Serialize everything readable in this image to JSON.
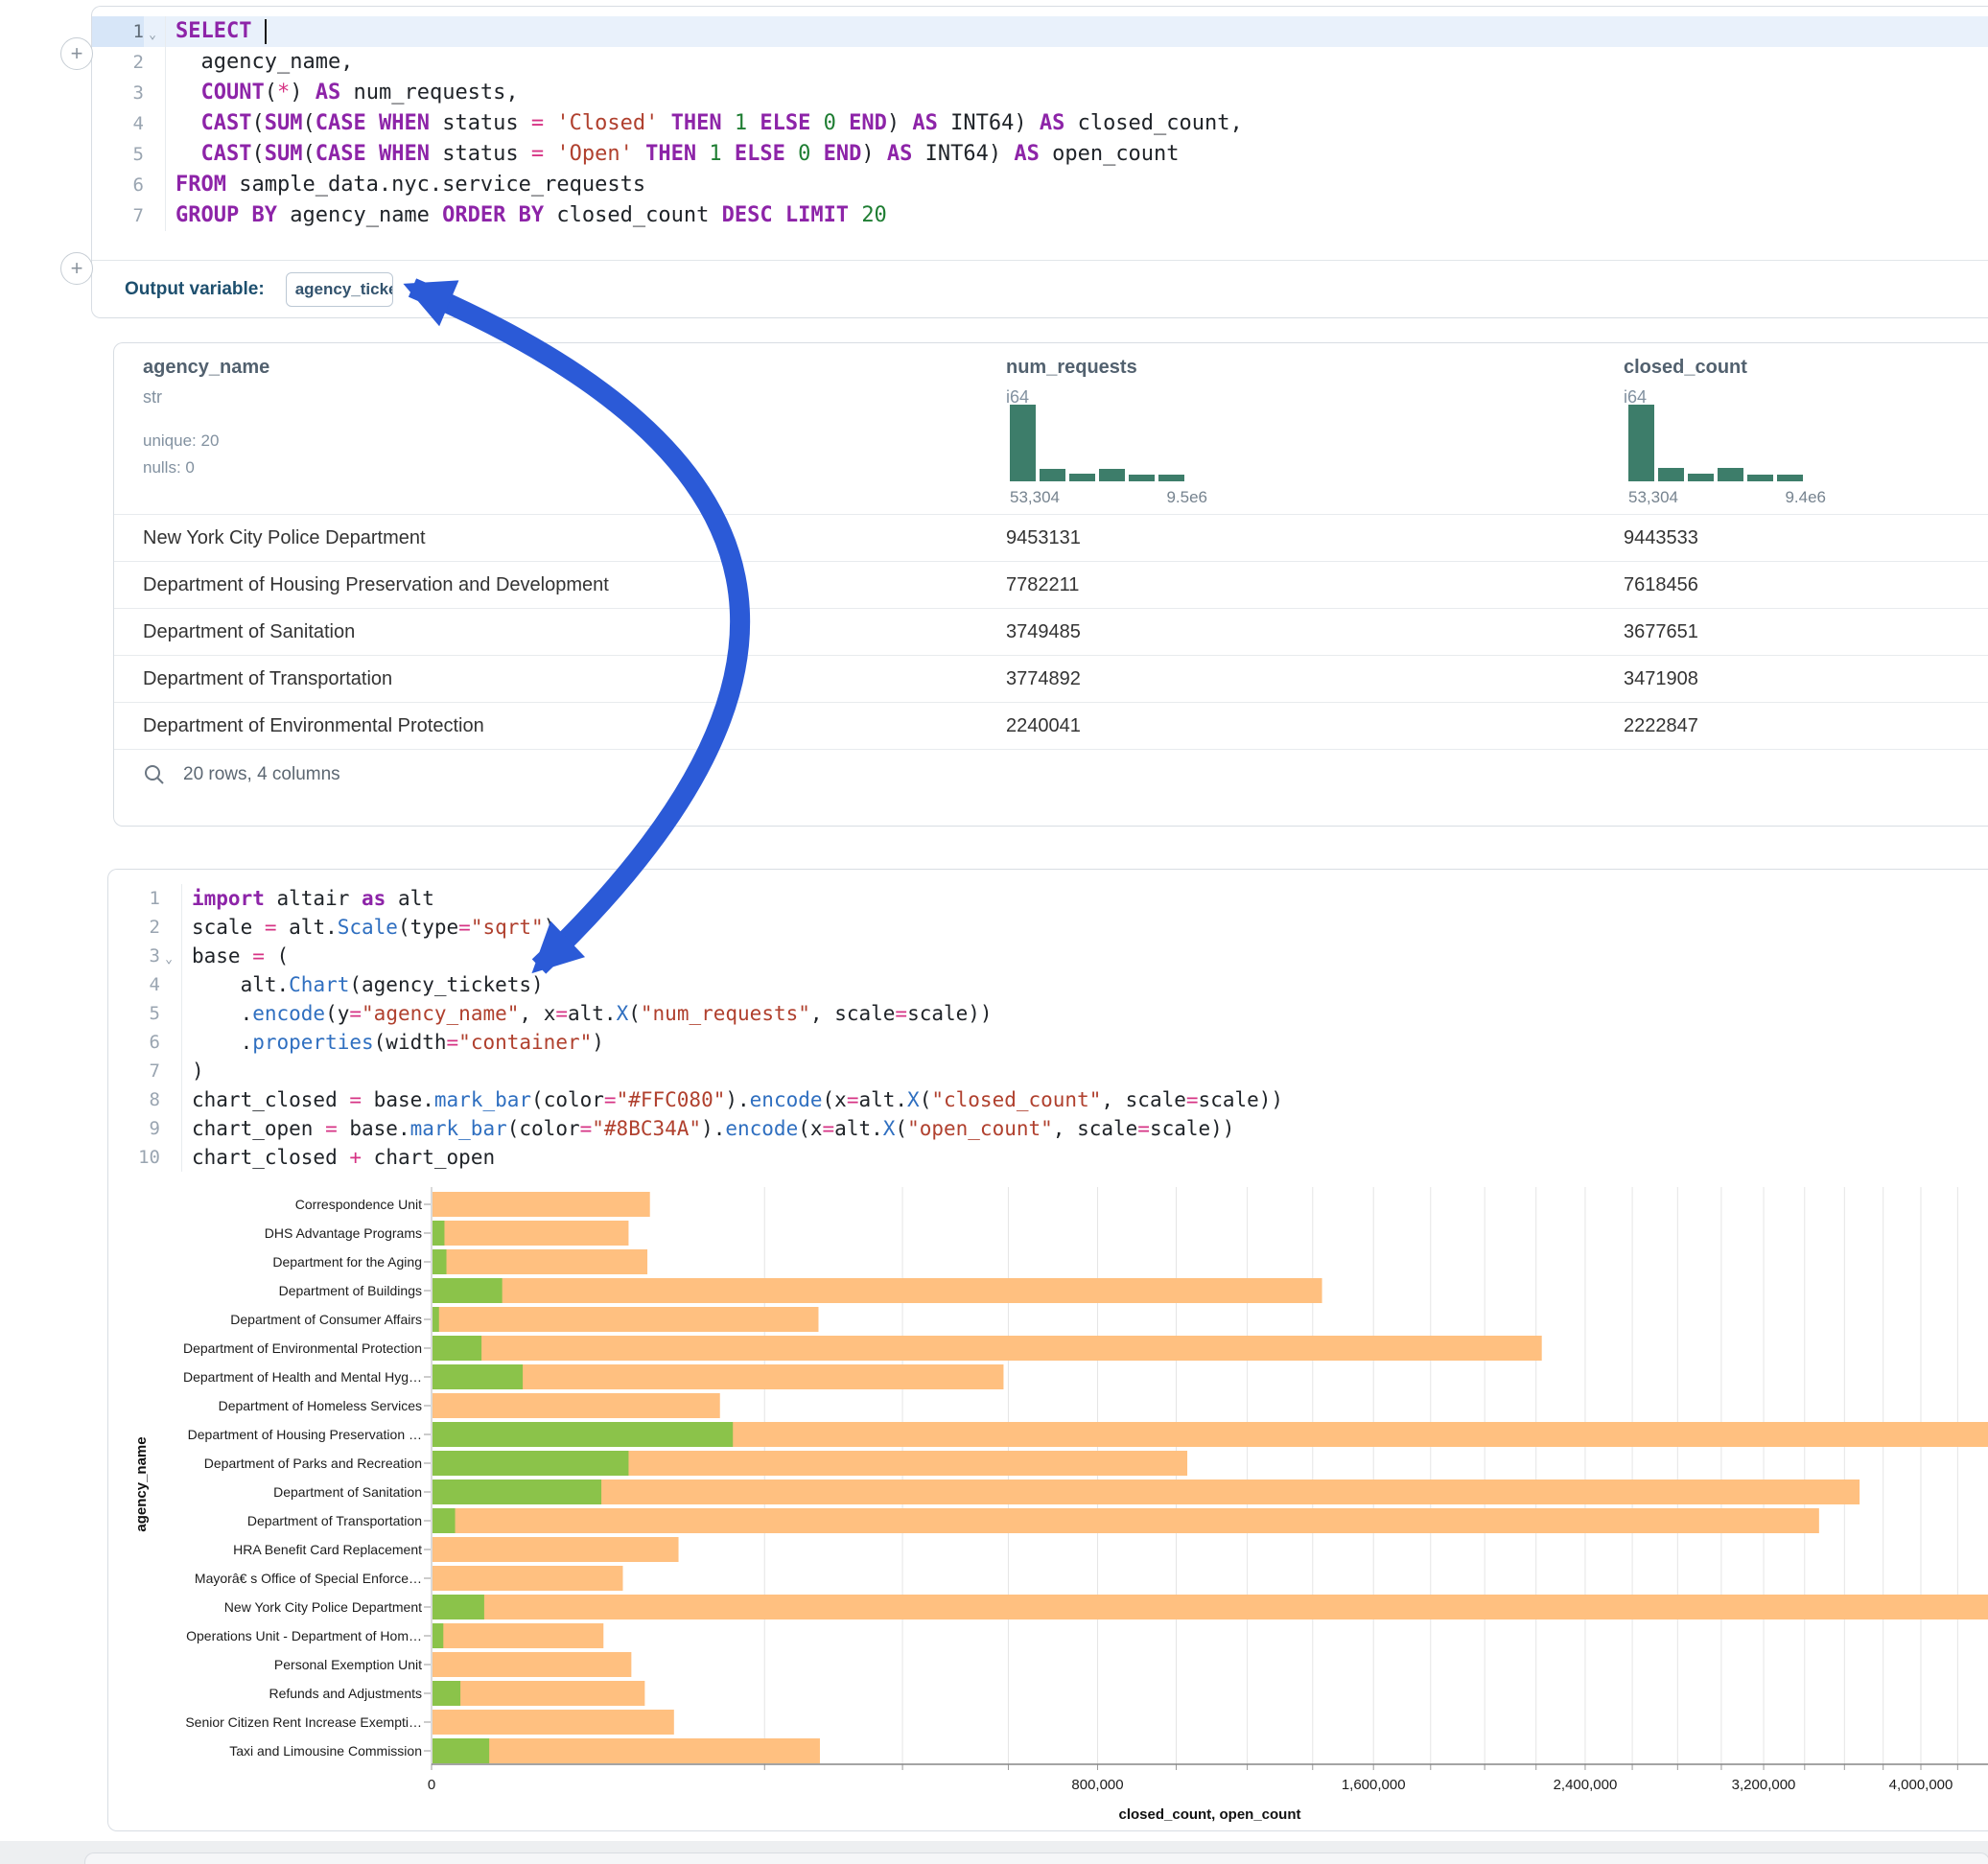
{
  "ui": {
    "add_button_label": "+",
    "fold_glyph": "⌄"
  },
  "sql_cell": {
    "lines": [
      {
        "n": "1",
        "fold": true,
        "active": true,
        "tokens": [
          [
            "k",
            "SELECT"
          ],
          [
            "t",
            " "
          ],
          [
            "caret",
            ""
          ]
        ]
      },
      {
        "n": "2",
        "tokens": [
          [
            "t",
            "  agency_name,"
          ]
        ]
      },
      {
        "n": "3",
        "tokens": [
          [
            "t",
            "  "
          ],
          [
            "k",
            "COUNT"
          ],
          [
            "t",
            "("
          ],
          [
            "o",
            "*"
          ],
          [
            "t",
            ") "
          ],
          [
            "k",
            "AS"
          ],
          [
            "t",
            " num_requests,"
          ]
        ]
      },
      {
        "n": "4",
        "tokens": [
          [
            "t",
            "  "
          ],
          [
            "k",
            "CAST"
          ],
          [
            "t",
            "("
          ],
          [
            "k",
            "SUM"
          ],
          [
            "t",
            "("
          ],
          [
            "k",
            "CASE"
          ],
          [
            "t",
            " "
          ],
          [
            "k",
            "WHEN"
          ],
          [
            "t",
            " status "
          ],
          [
            "o",
            "="
          ],
          [
            "t",
            " "
          ],
          [
            "s",
            "'Closed'"
          ],
          [
            "t",
            " "
          ],
          [
            "k",
            "THEN"
          ],
          [
            "t",
            " "
          ],
          [
            "n2",
            "1"
          ],
          [
            "t",
            " "
          ],
          [
            "k",
            "ELSE"
          ],
          [
            "t",
            " "
          ],
          [
            "n2",
            "0"
          ],
          [
            "t",
            " "
          ],
          [
            "k",
            "END"
          ],
          [
            "t",
            ") "
          ],
          [
            "k",
            "AS"
          ],
          [
            "t",
            " INT64) "
          ],
          [
            "k",
            "AS"
          ],
          [
            "t",
            " closed_count,"
          ]
        ]
      },
      {
        "n": "5",
        "tokens": [
          [
            "t",
            "  "
          ],
          [
            "k",
            "CAST"
          ],
          [
            "t",
            "("
          ],
          [
            "k",
            "SUM"
          ],
          [
            "t",
            "("
          ],
          [
            "k",
            "CASE"
          ],
          [
            "t",
            " "
          ],
          [
            "k",
            "WHEN"
          ],
          [
            "t",
            " status "
          ],
          [
            "o",
            "="
          ],
          [
            "t",
            " "
          ],
          [
            "s",
            "'Open'"
          ],
          [
            "t",
            " "
          ],
          [
            "k",
            "THEN"
          ],
          [
            "t",
            " "
          ],
          [
            "n2",
            "1"
          ],
          [
            "t",
            " "
          ],
          [
            "k",
            "ELSE"
          ],
          [
            "t",
            " "
          ],
          [
            "n2",
            "0"
          ],
          [
            "t",
            " "
          ],
          [
            "k",
            "END"
          ],
          [
            "t",
            ") "
          ],
          [
            "k",
            "AS"
          ],
          [
            "t",
            " INT64) "
          ],
          [
            "k",
            "AS"
          ],
          [
            "t",
            " open_count"
          ]
        ]
      },
      {
        "n": "6",
        "tokens": [
          [
            "k",
            "FROM"
          ],
          [
            "t",
            " sample_data.nyc.service_requests"
          ]
        ]
      },
      {
        "n": "7",
        "tokens": [
          [
            "k",
            "GROUP"
          ],
          [
            "t",
            " "
          ],
          [
            "k",
            "BY"
          ],
          [
            "t",
            " agency_name "
          ],
          [
            "k",
            "ORDER"
          ],
          [
            "t",
            " "
          ],
          [
            "k",
            "BY"
          ],
          [
            "t",
            " closed_count "
          ],
          [
            "k",
            "DESC"
          ],
          [
            "t",
            " "
          ],
          [
            "k",
            "LIMIT"
          ],
          [
            "t",
            " "
          ],
          [
            "n2",
            "20"
          ]
        ]
      }
    ]
  },
  "output_row": {
    "label": "Output variable:",
    "value": "agency_tickets"
  },
  "table": {
    "columns": [
      {
        "name": "agency_name",
        "type": "str",
        "unique": "unique: 20",
        "nulls": "nulls: 0"
      },
      {
        "name": "num_requests",
        "type": "i64",
        "hist": [
          1,
          0.16,
          0.1,
          0.16,
          0.085,
          0.085
        ],
        "min_label": "53,304",
        "max_label": "9.5e6"
      },
      {
        "name": "closed_count",
        "type": "i64",
        "hist": [
          1,
          0.17,
          0.1,
          0.17,
          0.09,
          0.09
        ],
        "min_label": "53,304",
        "max_label": "9.4e6"
      }
    ],
    "rows": [
      {
        "agency": "New York City Police Department",
        "num": "9453131",
        "closed": "9443533"
      },
      {
        "agency": "Department of Housing Preservation and Development",
        "num": "7782211",
        "closed": "7618456"
      },
      {
        "agency": "Department of Sanitation",
        "num": "3749485",
        "closed": "3677651"
      },
      {
        "agency": "Department of Transportation",
        "num": "3774892",
        "closed": "3471908"
      },
      {
        "agency": "Department of Environmental Protection",
        "num": "2240041",
        "closed": "2222847"
      }
    ],
    "footer": "20 rows, 4 columns",
    "hist_color": "#3d7d6a"
  },
  "python_cell": {
    "lines": [
      {
        "n": "1",
        "tokens": [
          [
            "k",
            "import"
          ],
          [
            "t",
            " altair "
          ],
          [
            "k",
            "as"
          ],
          [
            "t",
            " alt"
          ]
        ]
      },
      {
        "n": "2",
        "tokens": [
          [
            "t",
            "scale "
          ],
          [
            "o",
            "="
          ],
          [
            "t",
            " alt."
          ],
          [
            "f",
            "Scale"
          ],
          [
            "t",
            "(type"
          ],
          [
            "o",
            "="
          ],
          [
            "s",
            "\"sqrt\""
          ],
          [
            "t",
            ")"
          ]
        ]
      },
      {
        "n": "3",
        "fold": true,
        "tokens": [
          [
            "t",
            "base "
          ],
          [
            "o",
            "="
          ],
          [
            "t",
            " ("
          ]
        ]
      },
      {
        "n": "4",
        "tokens": [
          [
            "t",
            "    alt."
          ],
          [
            "f",
            "Chart"
          ],
          [
            "t",
            "(agency_tickets)"
          ]
        ]
      },
      {
        "n": "5",
        "tokens": [
          [
            "t",
            "    ."
          ],
          [
            "f",
            "encode"
          ],
          [
            "t",
            "(y"
          ],
          [
            "o",
            "="
          ],
          [
            "s",
            "\"agency_name\""
          ],
          [
            "t",
            ", x"
          ],
          [
            "o",
            "="
          ],
          [
            "t",
            "alt."
          ],
          [
            "f",
            "X"
          ],
          [
            "t",
            "("
          ],
          [
            "s",
            "\"num_requests\""
          ],
          [
            "t",
            ", scale"
          ],
          [
            "o",
            "="
          ],
          [
            "t",
            "scale))"
          ]
        ]
      },
      {
        "n": "6",
        "tokens": [
          [
            "t",
            "    ."
          ],
          [
            "f",
            "properties"
          ],
          [
            "t",
            "(width"
          ],
          [
            "o",
            "="
          ],
          [
            "s",
            "\"container\""
          ],
          [
            "t",
            ")"
          ]
        ]
      },
      {
        "n": "7",
        "tokens": [
          [
            "t",
            ")"
          ]
        ]
      },
      {
        "n": "8",
        "tokens": [
          [
            "t",
            "chart_closed "
          ],
          [
            "o",
            "="
          ],
          [
            "t",
            " base."
          ],
          [
            "f",
            "mark_bar"
          ],
          [
            "t",
            "(color"
          ],
          [
            "o",
            "="
          ],
          [
            "s",
            "\"#FFC080\""
          ],
          [
            "t",
            ")."
          ],
          [
            "f",
            "encode"
          ],
          [
            "t",
            "(x"
          ],
          [
            "o",
            "="
          ],
          [
            "t",
            "alt."
          ],
          [
            "f",
            "X"
          ],
          [
            "t",
            "("
          ],
          [
            "s",
            "\"closed_count\""
          ],
          [
            "t",
            ", scale"
          ],
          [
            "o",
            "="
          ],
          [
            "t",
            "scale))"
          ]
        ]
      },
      {
        "n": "9",
        "tokens": [
          [
            "t",
            "chart_open "
          ],
          [
            "o",
            "="
          ],
          [
            "t",
            " base."
          ],
          [
            "f",
            "mark_bar"
          ],
          [
            "t",
            "(color"
          ],
          [
            "o",
            "="
          ],
          [
            "s",
            "\"#8BC34A\""
          ],
          [
            "t",
            ")."
          ],
          [
            "f",
            "encode"
          ],
          [
            "t",
            "(x"
          ],
          [
            "o",
            "="
          ],
          [
            "t",
            "alt."
          ],
          [
            "f",
            "X"
          ],
          [
            "t",
            "("
          ],
          [
            "s",
            "\"open_count\""
          ],
          [
            "t",
            ", scale"
          ],
          [
            "o",
            "="
          ],
          [
            "t",
            "scale))"
          ]
        ]
      },
      {
        "n": "10",
        "tokens": [
          [
            "t",
            "chart_closed "
          ],
          [
            "o",
            "+"
          ],
          [
            "t",
            " chart_open"
          ]
        ]
      }
    ]
  },
  "chart_data": {
    "type": "bar",
    "orientation": "horizontal",
    "scale_type": "sqrt",
    "layered": true,
    "x_title": "closed_count, open_count",
    "y_title": "agency_name",
    "x_tick_values": [
      0,
      800000,
      1600000,
      2400000,
      3200000,
      4000000
    ],
    "x_tick_labels": [
      "0",
      "800,000",
      "1,600,000",
      "2,400,000",
      "3,200,000",
      "4,000,000"
    ],
    "minor_grid_step": 200000,
    "x_visible_max": 4400000,
    "grid": true,
    "categories": [
      "Correspondence Unit",
      "DHS Advantage Programs",
      "Department for the Aging",
      "Department of Buildings",
      "Department of Consumer Affairs",
      "Department of Environmental Protection",
      "Department of Health and Mental Hyg…",
      "Department of Homeless Services",
      "Department of Housing Preservation …",
      "Department of Parks and Recreation",
      "Department of Sanitation",
      "Department of Transportation",
      "HRA Benefit Card Replacement",
      "Mayorâ€ s Office of Special Enforce…",
      "New York City Police Department",
      "Operations Unit - Department of Hom…",
      "Personal Exemption Unit",
      "Refunds and Adjustments",
      "Senior Citizen Rent Increase Exempti…",
      "Taxi and Limousine Commission"
    ],
    "series": [
      {
        "name": "closed_count",
        "color": "#FFC080",
        "values": [
          86000,
          70000,
          84000,
          1430000,
          270000,
          2222847,
          590000,
          150000,
          7618456,
          1030000,
          3677651,
          3471908,
          110000,
          66000,
          9443533,
          53304,
          72000,
          82000,
          106000,
          272000
        ]
      },
      {
        "name": "open_count",
        "color": "#8BC34A",
        "values": [
          0,
          300,
          400,
          9000,
          100,
          4500,
          15000,
          0,
          163755,
          70000,
          52000,
          1000,
          0,
          0,
          5000,
          250,
          0,
          1500,
          0,
          6000
        ]
      }
    ]
  },
  "arrow": {
    "color": "#2b5ad7"
  }
}
